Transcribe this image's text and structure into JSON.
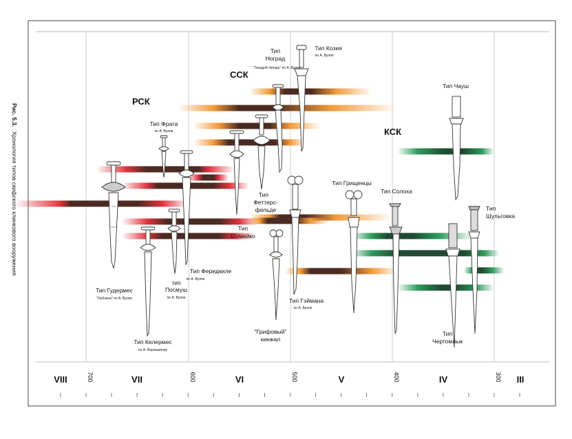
{
  "caption": {
    "number": "Рис. 5.3.",
    "text": "Хронология типов скифского клинкового вооружения"
  },
  "groups": {
    "rsk": "РСК",
    "ssk": "ССК",
    "ksk": "КСК"
  },
  "colors": {
    "red": "#e0333c",
    "orange": "#f39a3a",
    "green": "#2e9a5b",
    "core": "#4a2a22",
    "core_green": "#1f4a30",
    "axis": "#222222",
    "grid": "#cfcfcf",
    "frame": "#444444"
  },
  "timeline": {
    "centuries": [
      "VIII",
      "VII",
      "VI",
      "V",
      "IV",
      "III"
    ],
    "years": [
      "700",
      "600",
      "500",
      "400",
      "300"
    ]
  },
  "types": [
    {
      "id": "gudermes",
      "lines": [
        "Тип Гудермес"
      ],
      "note": "\"Орбэяна\" по А. Вулпе"
    },
    {
      "id": "kelermes",
      "lines": [
        "Тип Келермес"
      ],
      "note": "по А. Ворошилову"
    },
    {
      "id": "frata",
      "lines": [
        "Тип Фрата"
      ],
      "note": "по А. Вулпе"
    },
    {
      "id": "posmush",
      "lines": [
        "тип",
        "Посмуш"
      ],
      "note": "по А. Вулпе"
    },
    {
      "id": "feridnkile",
      "lines": [
        "Тип Феридкиле"
      ],
      "note": "по А. Вулпе"
    },
    {
      "id": "shumeyko",
      "lines": [
        "Тип",
        "Шумейко"
      ],
      "note": ""
    },
    {
      "id": "fettersfelde",
      "lines": [
        "Тип",
        "Феттерс-",
        "фельде"
      ],
      "note": ""
    },
    {
      "id": "nograd",
      "lines": [
        "Тип",
        "Ноград"
      ],
      "note": "\"Тисадоб-Чегарь\" по А. Вулпе"
    },
    {
      "id": "koziya",
      "lines": [
        "Тип Козия"
      ],
      "note": "по А. Вулпе"
    },
    {
      "id": "geymana",
      "lines": [
        "Тип Гэймана"
      ],
      "note": "по А. Вулпе"
    },
    {
      "id": "grifovy",
      "lines": [
        "\"Грифовый\"",
        "кинжал"
      ],
      "note": ""
    },
    {
      "id": "grishchentsy",
      "lines": [
        "Тип Грищенцы"
      ],
      "note": ""
    },
    {
      "id": "solokha",
      "lines": [
        "Тип Солоха"
      ],
      "note": ""
    },
    {
      "id": "chaush",
      "lines": [
        "Тип Чауш"
      ],
      "note": ""
    },
    {
      "id": "shulgovka",
      "lines": [
        "Тип",
        "Шульговка"
      ],
      "note": ""
    },
    {
      "id": "chertomlyk",
      "lines": [
        "Тип",
        "Чертомлык"
      ],
      "note": ""
    }
  ],
  "ranges": [
    {
      "color": "red",
      "fade_from": -690,
      "full_from": -660,
      "core_from": -640,
      "core_to": -590,
      "full_to": -580,
      "fade_to": -555
    },
    {
      "color": "red",
      "fade_from": -665,
      "full_from": -640,
      "core_from": -630,
      "core_to": -575,
      "full_to": -560,
      "fade_to": -540
    },
    {
      "color": "red",
      "fade_from": -770,
      "full_from": -725,
      "core_from": -715,
      "core_to": -650,
      "full_to": -625,
      "fade_to": -600
    },
    {
      "color": "red",
      "fade_from": -665,
      "full_from": -640,
      "core_from": -620,
      "core_to": -570,
      "full_to": -550,
      "fade_to": -530
    },
    {
      "color": "red",
      "fade_from": -665,
      "full_from": -640,
      "core_from": -625,
      "core_to": -570,
      "full_to": -555,
      "fade_to": -535
    },
    {
      "color": "red",
      "fade_from": -600,
      "full_from": -590,
      "core_from": -585,
      "core_to": -575,
      "full_to": -570,
      "fade_to": -560
    },
    {
      "color": "orange",
      "fade_from": -540,
      "full_from": -520,
      "core_from": -505,
      "core_to": -480,
      "full_to": -455,
      "fade_to": -420
    },
    {
      "color": "orange",
      "fade_from": -610,
      "full_from": -575,
      "core_from": -550,
      "core_to": -515,
      "full_to": -460,
      "fade_to": -395
    },
    {
      "color": "orange",
      "fade_from": -595,
      "full_from": -570,
      "core_from": -550,
      "core_to": -520,
      "full_to": -500,
      "fade_to": -470
    },
    {
      "color": "orange",
      "fade_from": -595,
      "full_from": -575,
      "core_from": -560,
      "core_to": -515,
      "full_to": -500,
      "fade_to": -485
    },
    {
      "color": "orange",
      "fade_from": -540,
      "full_from": -520,
      "core_from": -510,
      "core_to": -485,
      "full_to": -455,
      "fade_to": -400
    },
    {
      "color": "orange",
      "fade_from": -540,
      "full_from": -530,
      "core_from": -522,
      "core_to": -495,
      "full_to": -480,
      "fade_to": -462
    },
    {
      "color": "orange",
      "fade_from": -505,
      "full_from": -490,
      "core_from": -480,
      "core_to": -450,
      "full_to": -420,
      "fade_to": -395
    },
    {
      "color": "green",
      "fade_from": -395,
      "full_from": -375,
      "core_from": -348,
      "core_to": -330,
      "full_to": -312,
      "fade_to": -300
    },
    {
      "color": "green",
      "fade_from": -440,
      "full_from": -420,
      "core_from": -405,
      "core_to": -380,
      "full_to": -355,
      "fade_to": -320
    },
    {
      "color": "green",
      "fade_from": -440,
      "full_from": -420,
      "core_from": -395,
      "core_to": -330,
      "full_to": -310,
      "fade_to": -295
    },
    {
      "color": "green",
      "fade_from": -330,
      "full_from": -322,
      "core_from": -318,
      "core_to": -312,
      "full_to": -302,
      "fade_to": -290
    },
    {
      "color": "green",
      "fade_from": -395,
      "full_from": -375,
      "core_from": -352,
      "core_to": -338,
      "full_to": -318,
      "fade_to": -300
    }
  ]
}
